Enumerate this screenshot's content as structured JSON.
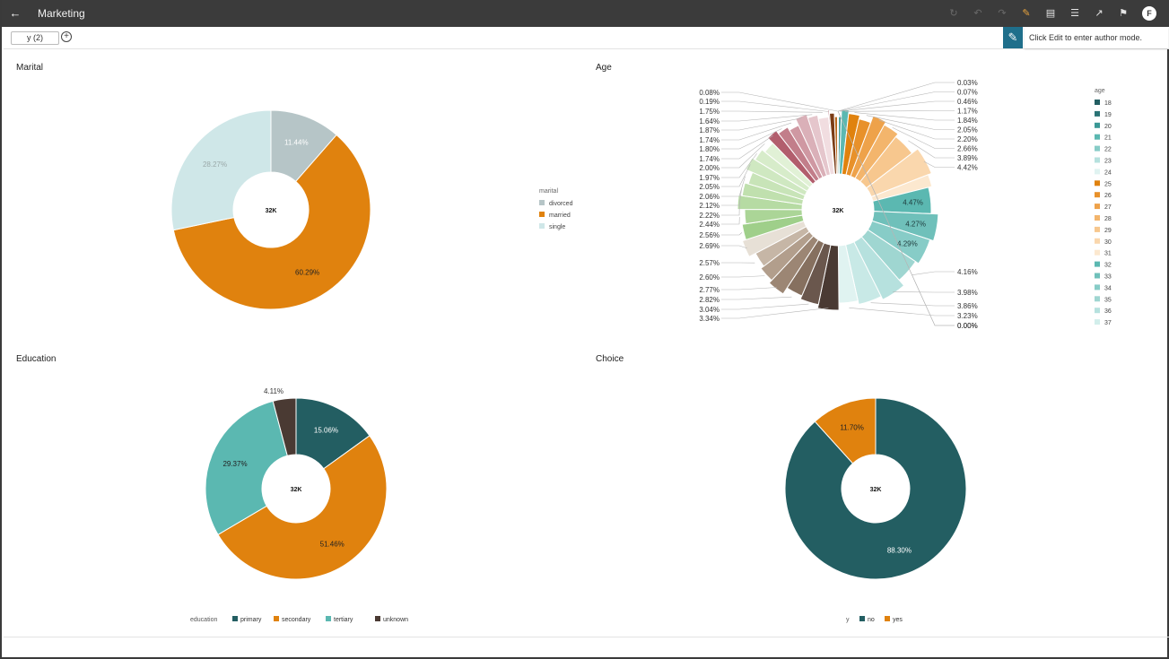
{
  "app": {
    "title": "Marketing",
    "avatar_letter": "F"
  },
  "toolbar_icons": [
    "refresh-icon",
    "undo-icon",
    "redo-icon",
    "edit-pencil-icon",
    "save-icon",
    "comment-icon",
    "export-icon",
    "bookmark-icon"
  ],
  "filter": {
    "chip_label": "y (2)",
    "add_label": "+"
  },
  "edit_hint": "Click Edit to enter author mode.",
  "panels": {
    "marital": "Marital",
    "age": "Age",
    "education": "Education",
    "choice": "Choice"
  },
  "colors": {
    "teal_dark": "#235e62",
    "orange": "#e0820e",
    "teal_light": "#5bb8b1",
    "brown_dark": "#4a3a33",
    "gray_blue": "#b6c5c7",
    "pale_blue": "#cfe7e8"
  },
  "chart_data": [
    {
      "id": "marital",
      "type": "pie",
      "center_label": "32K",
      "legend_title": "marital",
      "slices": [
        {
          "label": "divorced",
          "value": 11.44,
          "pct_text": "11.44%",
          "color": "#b6c5c7",
          "text_color": "#ffffff"
        },
        {
          "label": "married",
          "value": 60.29,
          "pct_text": "60.29%",
          "color": "#e0820e",
          "text_color": "#222222"
        },
        {
          "label": "single",
          "value": 28.27,
          "pct_text": "28.27%",
          "color": "#cfe7e8",
          "text_color": "#9aa8a8"
        }
      ]
    },
    {
      "id": "age",
      "type": "pie",
      "center_label": "32K",
      "legend_title": "age",
      "legend_items": [
        {
          "label": "18",
          "color": "#235e62"
        },
        {
          "label": "19",
          "color": "#2a7375"
        },
        {
          "label": "20",
          "color": "#3a9895"
        },
        {
          "label": "21",
          "color": "#5bb8b1"
        },
        {
          "label": "22",
          "color": "#87ccc7"
        },
        {
          "label": "23",
          "color": "#b6e1de"
        },
        {
          "label": "24",
          "color": "#e0f3f1"
        },
        {
          "label": "25",
          "color": "#e0820e"
        },
        {
          "label": "26",
          "color": "#e8912a"
        },
        {
          "label": "27",
          "color": "#eea24a"
        },
        {
          "label": "28",
          "color": "#f3b56c"
        },
        {
          "label": "29",
          "color": "#f7c78e"
        },
        {
          "label": "30",
          "color": "#fad7ad"
        },
        {
          "label": "31",
          "color": "#fce8cf"
        },
        {
          "label": "32",
          "color": "#5bb8b1"
        },
        {
          "label": "33",
          "color": "#6fc0ba"
        },
        {
          "label": "34",
          "color": "#87ccc7"
        },
        {
          "label": "35",
          "color": "#9fd6d1"
        },
        {
          "label": "36",
          "color": "#b6e1de"
        },
        {
          "label": "37",
          "color": "#d2eeeb"
        }
      ],
      "slices": [
        {
          "value": 0.03,
          "label": "0.03%",
          "color": "#235e62"
        },
        {
          "value": 0.07,
          "label": "0.07%",
          "color": "#2a7375"
        },
        {
          "value": 0.46,
          "label": "0.46%",
          "color": "#3a9895"
        },
        {
          "value": 1.17,
          "label": "1.17%",
          "color": "#5bb8b1"
        },
        {
          "value": 1.84,
          "label": "1.84%",
          "color": "#e0820e"
        },
        {
          "value": 2.05,
          "label": "2.05%",
          "color": "#e8912a"
        },
        {
          "value": 2.2,
          "label": "2.20%",
          "color": "#eea24a"
        },
        {
          "value": 2.66,
          "label": "2.66%",
          "color": "#f3b56c"
        },
        {
          "value": 3.89,
          "label": "3.89%",
          "color": "#f7c78e"
        },
        {
          "value": 4.42,
          "label": "4.42%",
          "color": "#fad7ad"
        },
        {
          "value": 2.0,
          "label": "",
          "color": "#fce8cf"
        },
        {
          "value": 4.47,
          "label": "4.47%",
          "color": "#5bb8b1"
        },
        {
          "value": 4.27,
          "label": "4.27%",
          "color": "#6fc0ba"
        },
        {
          "value": 4.29,
          "label": "4.29%",
          "color": "#87ccc7"
        },
        {
          "value": 4.16,
          "label": "4.16%",
          "color": "#9fd6d1"
        },
        {
          "value": 3.98,
          "label": "3.98%",
          "color": "#b6e1de"
        },
        {
          "value": 3.86,
          "label": "3.86%",
          "color": "#c8e9e6"
        },
        {
          "value": 3.23,
          "label": "3.23%",
          "color": "#e0f3f1"
        },
        {
          "value": 3.34,
          "label": "3.34%",
          "color": "#4a3a33"
        },
        {
          "value": 3.04,
          "label": "3.04%",
          "color": "#6a574d"
        },
        {
          "value": 2.82,
          "label": "2.82%",
          "color": "#86705f"
        },
        {
          "value": 2.77,
          "label": "2.77%",
          "color": "#9c8674"
        },
        {
          "value": 2.6,
          "label": "2.60%",
          "color": "#b29e8c"
        },
        {
          "value": 2.57,
          "label": "2.57%",
          "color": "#c6b6a6"
        },
        {
          "value": 2.69,
          "label": "2.69%",
          "color": "#e7e0d6"
        },
        {
          "value": 2.56,
          "label": "2.56%",
          "color": "#9fcf8a"
        },
        {
          "value": 2.44,
          "label": "2.44%",
          "color": "#abd597"
        },
        {
          "value": 2.22,
          "label": "2.22%",
          "color": "#b6dba3"
        },
        {
          "value": 2.12,
          "label": "2.12%",
          "color": "#c0e0ae"
        },
        {
          "value": 2.06,
          "label": "2.06%",
          "color": "#c8e4b8"
        },
        {
          "value": 2.05,
          "label": "2.05%",
          "color": "#cfe8c1"
        },
        {
          "value": 1.97,
          "label": "1.97%",
          "color": "#d7ecca"
        },
        {
          "value": 2.0,
          "label": "2.00%",
          "color": "#e1f1d6"
        },
        {
          "value": 1.74,
          "label": "1.74%",
          "color": "#b25e6d"
        },
        {
          "value": 1.8,
          "label": "1.80%",
          "color": "#c27e8a"
        },
        {
          "value": 1.74,
          "label": "1.74%",
          "color": "#cf98a2"
        },
        {
          "value": 1.87,
          "label": "1.87%",
          "color": "#dab0b8"
        },
        {
          "value": 1.64,
          "label": "1.64%",
          "color": "#e5c6cc"
        },
        {
          "value": 1.75,
          "label": "1.75%",
          "color": "#f1dde0"
        },
        {
          "value": 0.19,
          "label": "0.19%",
          "color": "#b25e6d"
        },
        {
          "value": 0.8,
          "label": "",
          "color": "#7a3c16"
        },
        {
          "value": 0.5,
          "label": "",
          "color": "#b7671f"
        },
        {
          "value": 0.08,
          "label": "0.08%",
          "color": "#dcc0a0"
        },
        {
          "value": 0.0,
          "label": "0.00%",
          "color": "#e0e0e0"
        },
        {
          "value": 0.0,
          "label": "0.00%",
          "color": "#e0e0e0"
        }
      ]
    },
    {
      "id": "education",
      "type": "pie",
      "center_label": "32K",
      "legend_title": "education",
      "slices": [
        {
          "label": "primary",
          "value": 15.06,
          "pct_text": "15.06%",
          "color": "#235e62",
          "text_color": "#ffffff"
        },
        {
          "label": "secondary",
          "value": 51.46,
          "pct_text": "51.46%",
          "color": "#e0820e",
          "text_color": "#222222"
        },
        {
          "label": "tertiary",
          "value": 29.37,
          "pct_text": "29.37%",
          "color": "#5bb8b1",
          "text_color": "#222222"
        },
        {
          "label": "unknown",
          "value": 4.11,
          "pct_text": "4.11%",
          "color": "#4a3a33",
          "text_color": "#222222"
        }
      ]
    },
    {
      "id": "choice",
      "type": "pie",
      "center_label": "32K",
      "legend_title": "y",
      "slices": [
        {
          "label": "no",
          "value": 88.3,
          "pct_text": "88.30%",
          "color": "#235e62",
          "text_color": "#ffffff"
        },
        {
          "label": "yes",
          "value": 11.7,
          "pct_text": "11.70%",
          "color": "#e0820e",
          "text_color": "#222222"
        }
      ]
    }
  ]
}
